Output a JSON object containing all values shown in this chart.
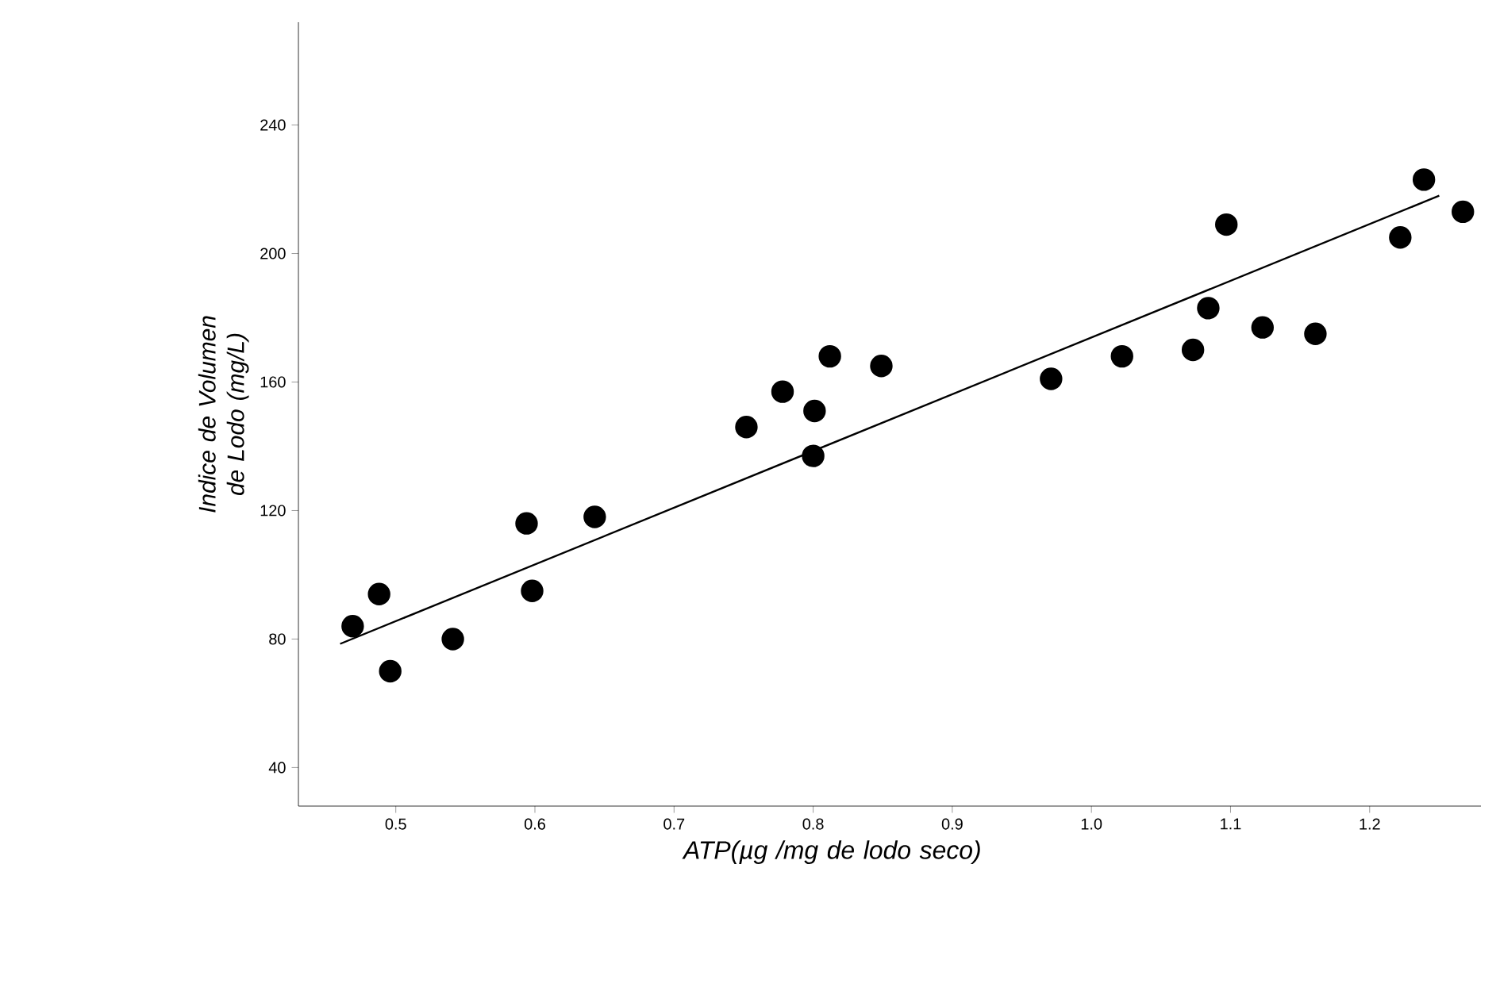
{
  "chart_data": {
    "type": "scatter",
    "xlabel": "ATP(µg /mg de lodo seco)",
    "ylabel": "Indice de Volumen de Lodo (mg/L)",
    "xlim": [
      0.43,
      1.28
    ],
    "ylim": [
      28,
      272
    ],
    "xticks": [
      0.5,
      0.6,
      0.7,
      0.8,
      0.9,
      {
        "value": 1.0,
        "label": "1.0"
      },
      1.1,
      1.2
    ],
    "yticks": [
      40,
      80,
      120,
      160,
      200,
      240
    ],
    "marker": "circle",
    "grid": false,
    "series": [
      {
        "color": "#000000",
        "x": [
          0.469,
          0.488,
          0.496,
          0.541,
          0.594,
          0.598,
          0.643,
          0.752,
          0.778,
          0.801,
          0.8,
          0.812,
          0.849,
          0.971,
          1.022,
          1.073,
          1.084,
          1.097,
          1.123,
          1.161,
          1.222,
          1.239,
          1.267
        ],
        "values": [
          84,
          94,
          70,
          80,
          116,
          95,
          118,
          146,
          157,
          151,
          137,
          168,
          165,
          161,
          168,
          170,
          183,
          209,
          177,
          175,
          205,
          223,
          213
        ]
      },
      {
        "type": "line",
        "color": "#000000",
        "marker": "none",
        "x": [
          0.46,
          1.25
        ],
        "values": [
          78.5,
          218
        ]
      }
    ]
  }
}
